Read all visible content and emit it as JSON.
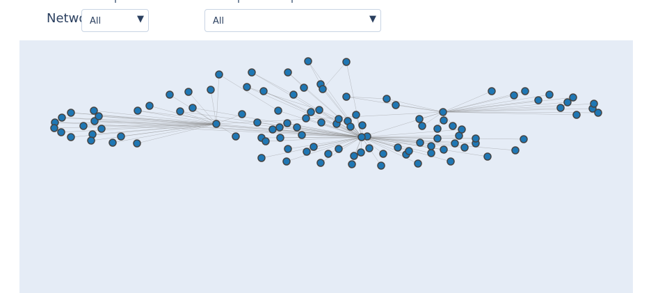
{
  "header": {
    "title": "Netwo"
  },
  "filters": {
    "filter_1": {
      "selected": "All"
    },
    "filter_2": {
      "selected": "All"
    }
  },
  "colors": {
    "node_fill": "#1f77b4",
    "node_stroke": "#444444",
    "edge": "#888888",
    "plot_bg": "#e5ecf6"
  },
  "icons": {
    "dropdown_arrow": "triangle-down-icon"
  }
}
